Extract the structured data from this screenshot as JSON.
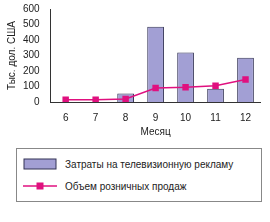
{
  "chart_data": {
    "type": "bar",
    "categories": [
      "6",
      "7",
      "8",
      "9",
      "10",
      "11",
      "12"
    ],
    "x_label": "Месяц",
    "y_label": "Тыс. дол. США",
    "ylim": [
      0,
      600
    ],
    "yticks": [
      0,
      100,
      200,
      300,
      400,
      500,
      600
    ],
    "grid": false,
    "legend": "bottom",
    "series": [
      {
        "name": "Затраты на телевизионную рекламу",
        "type": "bar",
        "color": "#a29fd4",
        "values": [
          0,
          0,
          55,
          485,
          320,
          85,
          285
        ]
      },
      {
        "name": "Объем розничных продаж",
        "type": "line",
        "color": "#e0107f",
        "marker": "square",
        "values": [
          15,
          15,
          20,
          90,
          95,
          105,
          145
        ]
      }
    ]
  }
}
